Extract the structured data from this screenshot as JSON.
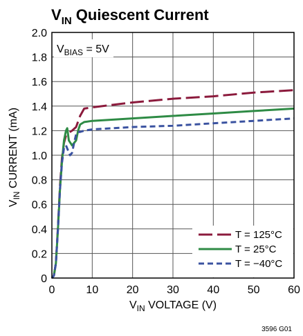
{
  "chart_data": {
    "type": "line",
    "title": {
      "main": "V",
      "sub": "IN",
      "rest": " Quiescent Current"
    },
    "ylabel": {
      "main": "V",
      "sub": "IN",
      "rest": " CURRENT (mA)"
    },
    "xlabel": {
      "main": "V",
      "sub": "IN",
      "rest": " VOLTAGE (V)"
    },
    "annotation": {
      "main": "V",
      "sub": "BIAS",
      "rest": " = 5V"
    },
    "figure_id": "3596 G01",
    "xlim": [
      0,
      60
    ],
    "ylim": [
      0,
      2.0
    ],
    "x_ticks": [
      0,
      10,
      20,
      30,
      40,
      50,
      60
    ],
    "x_tick_labels": [
      "0",
      "10",
      "20",
      "30",
      "40",
      "50",
      "60"
    ],
    "y_ticks": [
      0,
      0.2,
      0.4,
      0.6,
      0.8,
      1.0,
      1.2,
      1.4,
      1.6,
      1.8,
      2.0
    ],
    "y_tick_labels": [
      "0",
      "0.2",
      "0.4",
      "0.6",
      "0.8",
      "1.0",
      "1.2",
      "1.4",
      "1.6",
      "1.8",
      "2.0"
    ],
    "grid": true,
    "legend_position": "bottom-right",
    "series": [
      {
        "name": "T = 125°C",
        "color": "#8b1a3c",
        "dash": "long-dash",
        "x": [
          0,
          0.5,
          1.0,
          1.5,
          2.0,
          2.5,
          3.0,
          3.5,
          4.0,
          5.0,
          6.0,
          7.0,
          8.0,
          10,
          15,
          20,
          30,
          40,
          50,
          60
        ],
        "y": [
          0,
          0.02,
          0.12,
          0.42,
          0.75,
          0.98,
          1.1,
          1.16,
          1.18,
          1.2,
          1.23,
          1.32,
          1.38,
          1.39,
          1.41,
          1.43,
          1.46,
          1.48,
          1.51,
          1.53
        ]
      },
      {
        "name": "T = 25°C",
        "color": "#2e8b45",
        "dash": "solid",
        "x": [
          0,
          0.5,
          1.0,
          1.5,
          2.0,
          2.5,
          3.0,
          3.5,
          3.8,
          4.2,
          5.0,
          6.0,
          6.5,
          7.0,
          8.0,
          10,
          20,
          30,
          40,
          50,
          60
        ],
        "y": [
          0,
          0.02,
          0.12,
          0.4,
          0.72,
          0.95,
          1.12,
          1.2,
          1.22,
          1.12,
          1.08,
          1.12,
          1.2,
          1.25,
          1.27,
          1.28,
          1.3,
          1.32,
          1.34,
          1.36,
          1.38
        ]
      },
      {
        "name": "T = −40°C",
        "color": "#3a52a0",
        "dash": "short-dash",
        "x": [
          0,
          0.5,
          1.0,
          1.5,
          2.0,
          2.5,
          3.0,
          3.5,
          4.0,
          4.5,
          5.0,
          5.5,
          6.0,
          6.5,
          7.0,
          8.0,
          10,
          20,
          30,
          40,
          50,
          60
        ],
        "y": [
          0,
          0.02,
          0.12,
          0.4,
          0.72,
          0.94,
          1.06,
          1.08,
          1.04,
          1.0,
          1.02,
          1.1,
          1.17,
          1.19,
          1.19,
          1.2,
          1.21,
          1.23,
          1.24,
          1.26,
          1.28,
          1.3
        ]
      }
    ]
  }
}
